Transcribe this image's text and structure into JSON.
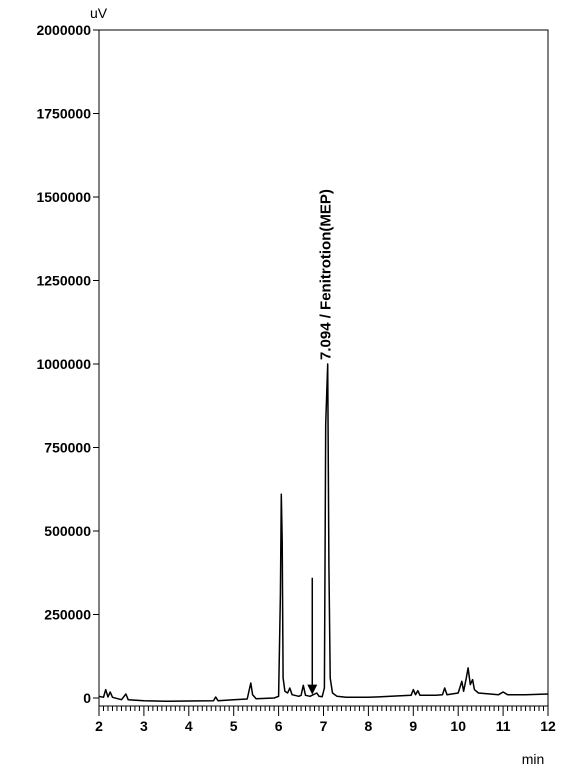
{
  "chart_data": {
    "type": "line",
    "y_unit_label": "uV",
    "x_unit_label": "min",
    "xlim": [
      2,
      12
    ],
    "ylim": [
      -50000,
      2000000
    ],
    "x_ticks": [
      2,
      3,
      4,
      5,
      6,
      7,
      8,
      9,
      10,
      11,
      12
    ],
    "x_tick_labels": [
      "2",
      "3",
      "4",
      "5",
      "6",
      "7",
      "8",
      "9",
      "10",
      "11",
      "12"
    ],
    "y_ticks": [
      0,
      250000,
      500000,
      750000,
      1000000,
      1250000,
      1500000,
      1750000,
      2000000
    ],
    "y_tick_labels": [
      "0",
      "250000",
      "500000",
      "750000",
      "1000000",
      "1250000",
      "1500000",
      "1750000",
      "2000000"
    ],
    "grid": false,
    "series": [
      {
        "trace": [
          [
            2.0,
            5000
          ],
          [
            2.1,
            2000
          ],
          [
            2.15,
            25000
          ],
          [
            2.2,
            3000
          ],
          [
            2.25,
            18000
          ],
          [
            2.3,
            2000
          ],
          [
            2.5,
            -5000
          ],
          [
            2.6,
            12000
          ],
          [
            2.65,
            -5000
          ],
          [
            3.0,
            -8000
          ],
          [
            3.5,
            -10000
          ],
          [
            4.0,
            -9000
          ],
          [
            4.55,
            -8000
          ],
          [
            4.6,
            3000
          ],
          [
            4.65,
            -8000
          ],
          [
            5.0,
            -5000
          ],
          [
            5.3,
            -3000
          ],
          [
            5.38,
            45000
          ],
          [
            5.42,
            10000
          ],
          [
            5.5,
            -2000
          ],
          [
            5.9,
            0
          ],
          [
            6.0,
            5000
          ],
          [
            6.04,
            310000
          ],
          [
            6.06,
            610000
          ],
          [
            6.08,
            470000
          ],
          [
            6.1,
            60000
          ],
          [
            6.14,
            20000
          ],
          [
            6.2,
            15000
          ],
          [
            6.25,
            30000
          ],
          [
            6.3,
            10000
          ],
          [
            6.45,
            5000
          ],
          [
            6.5,
            8000
          ],
          [
            6.55,
            38000
          ],
          [
            6.6,
            8000
          ],
          [
            6.7,
            5000
          ],
          [
            6.85,
            15000
          ],
          [
            6.9,
            5000
          ],
          [
            6.97,
            4000
          ],
          [
            7.02,
            30000
          ],
          [
            7.05,
            820000
          ],
          [
            7.094,
            1000000
          ],
          [
            7.12,
            400000
          ],
          [
            7.15,
            60000
          ],
          [
            7.2,
            15000
          ],
          [
            7.3,
            5000
          ],
          [
            7.5,
            2000
          ],
          [
            8.0,
            2000
          ],
          [
            8.5,
            5000
          ],
          [
            8.95,
            8000
          ],
          [
            9.0,
            25000
          ],
          [
            9.05,
            10000
          ],
          [
            9.1,
            22000
          ],
          [
            9.15,
            8000
          ],
          [
            9.5,
            8000
          ],
          [
            9.65,
            10000
          ],
          [
            9.7,
            30000
          ],
          [
            9.75,
            10000
          ],
          [
            10.0,
            15000
          ],
          [
            10.08,
            50000
          ],
          [
            10.12,
            20000
          ],
          [
            10.18,
            60000
          ],
          [
            10.22,
            90000
          ],
          [
            10.27,
            40000
          ],
          [
            10.32,
            55000
          ],
          [
            10.36,
            25000
          ],
          [
            10.45,
            15000
          ],
          [
            10.9,
            10000
          ],
          [
            11.0,
            18000
          ],
          [
            11.1,
            10000
          ],
          [
            11.5,
            10000
          ],
          [
            12.0,
            12000
          ]
        ]
      }
    ],
    "annotations": [
      {
        "label": "7.094 / Fenitrotion(MEP)",
        "x": 7.094,
        "y": 1000000,
        "orientation": "vertical"
      },
      {
        "type": "arrow-down",
        "x": 6.75,
        "y_from": 360000,
        "y_to": 10000
      }
    ]
  }
}
